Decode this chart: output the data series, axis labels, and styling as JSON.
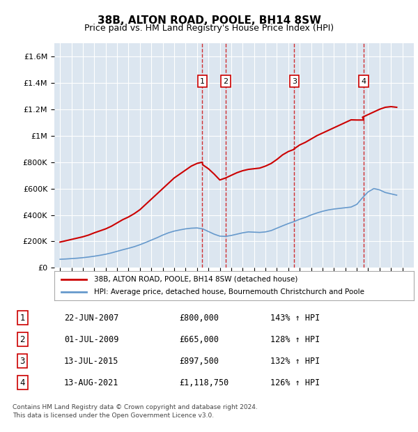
{
  "title": "38B, ALTON ROAD, POOLE, BH14 8SW",
  "subtitle": "Price paid vs. HM Land Registry's House Price Index (HPI)",
  "footer_line1": "Contains HM Land Registry data © Crown copyright and database right 2024.",
  "footer_line2": "This data is licensed under the Open Government Licence v3.0.",
  "legend_red": "38B, ALTON ROAD, POOLE, BH14 8SW (detached house)",
  "legend_blue": "HPI: Average price, detached house, Bournemouth Christchurch and Poole",
  "transactions": [
    {
      "label": "1",
      "date": "22-JUN-2007",
      "price": "£800,000",
      "hpi": "143% ↑ HPI",
      "year": 2007.47
    },
    {
      "label": "2",
      "date": "01-JUL-2009",
      "price": "£665,000",
      "hpi": "128% ↑ HPI",
      "year": 2009.5
    },
    {
      "label": "3",
      "date": "13-JUL-2015",
      "price": "£897,500",
      "hpi": "132% ↑ HPI",
      "year": 2015.53
    },
    {
      "label": "4",
      "date": "13-AUG-2021",
      "price": "£1,118,750",
      "hpi": "126% ↑ HPI",
      "year": 2021.62
    }
  ],
  "transaction_prices": [
    800000,
    665000,
    897500,
    1118750
  ],
  "red_line_color": "#cc0000",
  "blue_line_color": "#6699cc",
  "vline_color": "#cc0000",
  "background_color": "#dce6f0",
  "plot_bg_color": "#dce6f0",
  "ylim": [
    0,
    1700000
  ],
  "yticks": [
    0,
    200000,
    400000,
    600000,
    800000,
    1000000,
    1200000,
    1400000,
    1600000
  ],
  "xlim": [
    1994.5,
    2026
  ],
  "xticks": [
    1995,
    1996,
    1997,
    1998,
    1999,
    2000,
    2001,
    2002,
    2003,
    2004,
    2005,
    2006,
    2007,
    2008,
    2009,
    2010,
    2011,
    2012,
    2013,
    2014,
    2015,
    2016,
    2017,
    2018,
    2019,
    2020,
    2021,
    2022,
    2023,
    2024,
    2025
  ],
  "red_x": [
    1995.0,
    1995.5,
    1996.0,
    1996.5,
    1997.0,
    1997.5,
    1998.0,
    1998.5,
    1999.0,
    1999.5,
    2000.0,
    2000.5,
    2001.0,
    2001.5,
    2002.0,
    2002.5,
    2003.0,
    2003.5,
    2004.0,
    2004.5,
    2005.0,
    2005.5,
    2006.0,
    2006.5,
    2007.0,
    2007.47,
    2007.5,
    2008.0,
    2008.5,
    2009.0,
    2009.5,
    2010.0,
    2010.5,
    2011.0,
    2011.5,
    2012.0,
    2012.5,
    2013.0,
    2013.5,
    2014.0,
    2014.5,
    2015.0,
    2015.53,
    2015.5,
    2016.0,
    2016.5,
    2017.0,
    2017.5,
    2018.0,
    2018.5,
    2019.0,
    2019.5,
    2020.0,
    2020.5,
    2021.0,
    2021.62,
    2021.5,
    2022.0,
    2022.5,
    2023.0,
    2023.5,
    2024.0,
    2024.5
  ],
  "red_y": [
    195000,
    205000,
    215000,
    225000,
    235000,
    248000,
    265000,
    280000,
    295000,
    315000,
    340000,
    365000,
    385000,
    410000,
    440000,
    480000,
    520000,
    560000,
    600000,
    640000,
    680000,
    710000,
    740000,
    770000,
    790000,
    800000,
    780000,
    750000,
    710000,
    665000,
    680000,
    700000,
    720000,
    735000,
    745000,
    750000,
    755000,
    770000,
    790000,
    820000,
    855000,
    880000,
    897500,
    900000,
    930000,
    950000,
    975000,
    1000000,
    1020000,
    1040000,
    1060000,
    1080000,
    1100000,
    1120000,
    1118750,
    1118750,
    1140000,
    1160000,
    1180000,
    1200000,
    1215000,
    1220000,
    1215000
  ],
  "blue_x": [
    1995.0,
    1995.5,
    1996.0,
    1996.5,
    1997.0,
    1997.5,
    1998.0,
    1998.5,
    1999.0,
    1999.5,
    2000.0,
    2000.5,
    2001.0,
    2001.5,
    2002.0,
    2002.5,
    2003.0,
    2003.5,
    2004.0,
    2004.5,
    2005.0,
    2005.5,
    2006.0,
    2006.5,
    2007.0,
    2007.5,
    2008.0,
    2008.5,
    2009.0,
    2009.5,
    2010.0,
    2010.5,
    2011.0,
    2011.5,
    2012.0,
    2012.5,
    2013.0,
    2013.5,
    2014.0,
    2014.5,
    2015.0,
    2015.5,
    2016.0,
    2016.5,
    2017.0,
    2017.5,
    2018.0,
    2018.5,
    2019.0,
    2019.5,
    2020.0,
    2020.5,
    2021.0,
    2021.5,
    2022.0,
    2022.5,
    2023.0,
    2023.5,
    2024.0,
    2024.5
  ],
  "blue_y": [
    65000,
    67000,
    70000,
    73000,
    77000,
    82000,
    88000,
    95000,
    103000,
    113000,
    125000,
    137000,
    148000,
    160000,
    175000,
    192000,
    210000,
    228000,
    248000,
    265000,
    278000,
    287000,
    295000,
    300000,
    302000,
    295000,
    275000,
    255000,
    240000,
    238000,
    245000,
    255000,
    265000,
    272000,
    270000,
    268000,
    272000,
    282000,
    300000,
    318000,
    335000,
    350000,
    368000,
    382000,
    400000,
    415000,
    428000,
    438000,
    445000,
    450000,
    455000,
    460000,
    480000,
    530000,
    575000,
    600000,
    590000,
    570000,
    560000,
    550000
  ]
}
